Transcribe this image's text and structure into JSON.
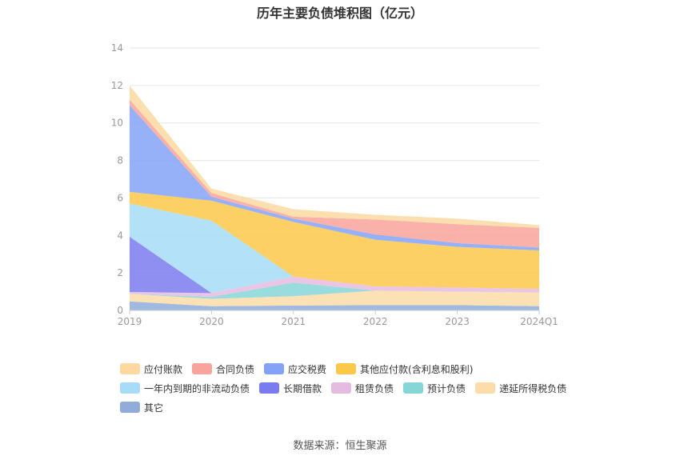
{
  "chart_data": {
    "type": "area",
    "stacked": true,
    "title": "历年主要负债堆积图（亿元）",
    "categories": [
      "2019",
      "2020",
      "2021",
      "2022",
      "2023",
      "2024Q1"
    ],
    "ylim": [
      0,
      14
    ],
    "yticks": [
      "0",
      "2",
      "4",
      "6",
      "8",
      "10",
      "12",
      "14"
    ],
    "grid": true,
    "legend_position": "bottom",
    "series": [
      {
        "name": "其它",
        "color": "#91acd9",
        "values": [
          0.48,
          0.22,
          0.26,
          0.28,
          0.28,
          0.22
        ]
      },
      {
        "name": "递延所得税负债",
        "color": "#fcdca8",
        "values": [
          0.4,
          0.4,
          0.5,
          0.78,
          0.72,
          0.73
        ]
      },
      {
        "name": "预计负债",
        "color": "#86d6d8",
        "values": [
          0.0,
          0.1,
          0.72,
          0.0,
          0.0,
          0.0
        ]
      },
      {
        "name": "租赁负债",
        "color": "#e6bbe0",
        "values": [
          0.1,
          0.2,
          0.32,
          0.22,
          0.22,
          0.2
        ]
      },
      {
        "name": "长期借款",
        "color": "#7b7bf0",
        "values": [
          2.95,
          0.0,
          0.0,
          0.0,
          0.0,
          0.0
        ]
      },
      {
        "name": "一年内到期的非流动负债",
        "color": "#a6dcf7",
        "values": [
          1.77,
          3.87,
          0.0,
          0.0,
          0.0,
          0.0
        ]
      },
      {
        "name": "其他应付款(含利息和股利)",
        "color": "#fbc84a",
        "values": [
          0.62,
          1.06,
          2.92,
          2.49,
          2.17,
          2.05
        ]
      },
      {
        "name": "应交税费",
        "color": "#84a3f7",
        "values": [
          4.63,
          0.21,
          0.18,
          0.28,
          0.2,
          0.15
        ]
      },
      {
        "name": "合同负债",
        "color": "#f8a39b",
        "values": [
          0.3,
          0.2,
          0.1,
          0.8,
          1.01,
          1.05
        ]
      },
      {
        "name": "应付账款",
        "color": "#fcd9a0",
        "values": [
          0.75,
          0.24,
          0.4,
          0.25,
          0.3,
          0.15
        ]
      }
    ]
  },
  "legend": [
    [
      {
        "label": "应付账款",
        "color": "#fcd9a0"
      },
      {
        "label": "合同负债",
        "color": "#f8a39b"
      },
      {
        "label": "应交税费",
        "color": "#84a3f7"
      },
      {
        "label": "其他应付款(含利息和股利)",
        "color": "#fbc84a"
      }
    ],
    [
      {
        "label": "一年内到期的非流动负债",
        "color": "#a6dcf7"
      },
      {
        "label": "长期借款",
        "color": "#7b7bf0"
      },
      {
        "label": "租赁负债",
        "color": "#e6bbe0"
      },
      {
        "label": "预计负债",
        "color": "#86d6d8"
      },
      {
        "label": "递延所得税负债",
        "color": "#fcdca8"
      }
    ],
    [
      {
        "label": "其它",
        "color": "#91acd9"
      }
    ]
  ],
  "source": "数据来源：恒生聚源"
}
